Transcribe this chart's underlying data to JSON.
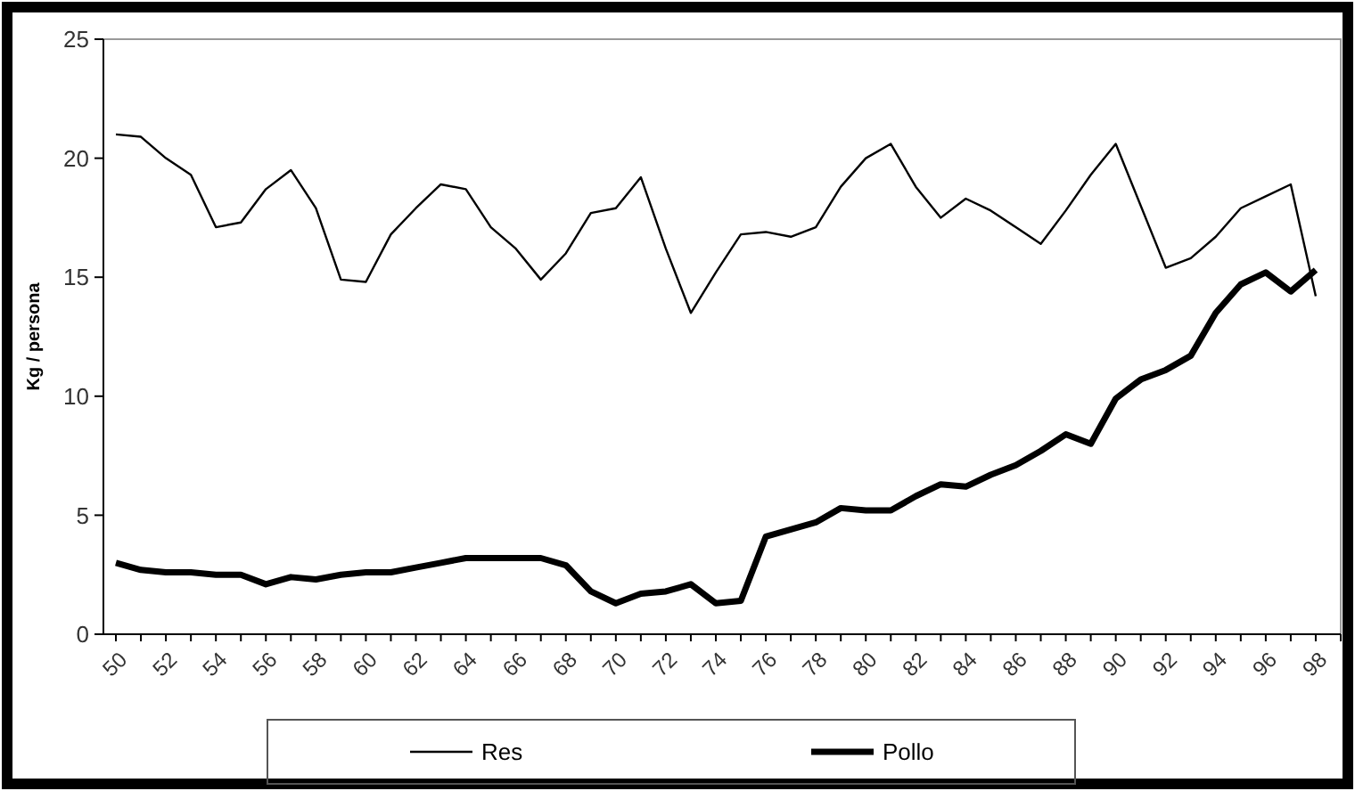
{
  "chart_data": {
    "type": "line",
    "ylabel": "Kg / persona",
    "categories": [
      "50",
      null,
      "52",
      null,
      "54",
      null,
      "56",
      null,
      "58",
      null,
      "60",
      null,
      "62",
      null,
      "64",
      null,
      "66",
      null,
      "68",
      null,
      "70",
      null,
      "72",
      null,
      "74",
      null,
      "76",
      null,
      "78",
      null,
      "80",
      null,
      "82",
      null,
      "84",
      null,
      "86",
      null,
      "88",
      null,
      "90",
      null,
      "92",
      null,
      "94",
      null,
      "96",
      null,
      "98"
    ],
    "series": [
      {
        "name": "Res",
        "color": "#000000",
        "values": [
          21.0,
          20.9,
          20.0,
          19.3,
          17.1,
          17.3,
          18.7,
          19.5,
          17.9,
          14.9,
          14.8,
          16.8,
          17.9,
          18.9,
          18.7,
          17.1,
          16.2,
          14.9,
          16.0,
          17.7,
          17.9,
          19.2,
          16.2,
          13.5,
          15.2,
          16.8,
          16.9,
          16.7,
          17.1,
          18.8,
          20.0,
          20.6,
          18.8,
          17.5,
          18.3,
          17.8,
          17.1,
          16.4,
          17.8,
          19.3,
          20.6,
          18.0,
          15.4,
          15.8,
          16.7,
          17.9,
          18.4,
          18.9,
          14.2
        ]
      },
      {
        "name": "Pollo",
        "color": "#000000",
        "values": [
          3.0,
          2.7,
          2.6,
          2.6,
          2.5,
          2.5,
          2.1,
          2.4,
          2.3,
          2.5,
          2.6,
          2.6,
          2.8,
          3.0,
          3.2,
          3.2,
          3.2,
          3.2,
          2.9,
          1.8,
          1.3,
          1.7,
          1.8,
          2.1,
          1.3,
          1.4,
          4.1,
          4.4,
          4.7,
          5.3,
          5.2,
          5.2,
          5.8,
          6.3,
          6.2,
          6.7,
          7.1,
          7.7,
          8.4,
          8.0,
          9.9,
          10.7,
          11.1,
          11.7,
          13.5,
          14.7,
          15.2,
          14.4,
          15.3
        ]
      }
    ],
    "ylim": [
      0,
      25
    ],
    "yticks": [
      0,
      5,
      10,
      15,
      20,
      25
    ],
    "grid": false,
    "legend": "bottom",
    "marker": "none",
    "line_style": "solid"
  }
}
